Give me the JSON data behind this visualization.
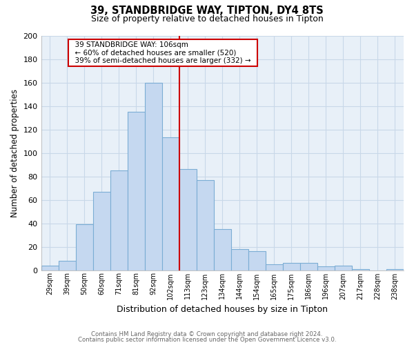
{
  "title": "39, STANDBRIDGE WAY, TIPTON, DY4 8TS",
  "subtitle": "Size of property relative to detached houses in Tipton",
  "xlabel": "Distribution of detached houses by size in Tipton",
  "ylabel": "Number of detached properties",
  "bar_labels": [
    "29sqm",
    "39sqm",
    "50sqm",
    "60sqm",
    "71sqm",
    "81sqm",
    "92sqm",
    "102sqm",
    "113sqm",
    "123sqm",
    "134sqm",
    "144sqm",
    "154sqm",
    "165sqm",
    "175sqm",
    "186sqm",
    "196sqm",
    "207sqm",
    "217sqm",
    "228sqm",
    "238sqm"
  ],
  "bar_values": [
    4,
    8,
    39,
    67,
    85,
    135,
    160,
    113,
    86,
    77,
    35,
    18,
    16,
    5,
    6,
    6,
    3,
    4,
    1,
    0,
    1
  ],
  "bar_color": "#c5d8f0",
  "bar_edge_color": "#7badd4",
  "vline_color": "#cc0000",
  "annotation_title": "39 STANDBRIDGE WAY: 106sqm",
  "annotation_line1": "← 60% of detached houses are smaller (520)",
  "annotation_line2": "39% of semi-detached houses are larger (332) →",
  "annotation_box_color": "#ffffff",
  "annotation_box_edge": "#cc0000",
  "footer1": "Contains HM Land Registry data © Crown copyright and database right 2024.",
  "footer2": "Contains public sector information licensed under the Open Government Licence v3.0.",
  "ylim": [
    0,
    200
  ],
  "yticks": [
    0,
    20,
    40,
    60,
    80,
    100,
    120,
    140,
    160,
    180,
    200
  ],
  "background_color": "#ffffff",
  "grid_color": "#c8d8e8",
  "grid_color_minor": "#e0eaf4"
}
